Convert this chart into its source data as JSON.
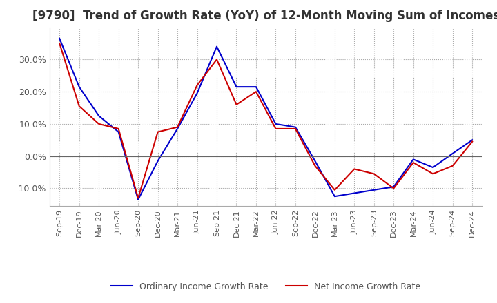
{
  "title": "[9790]  Trend of Growth Rate (YoY) of 12-Month Moving Sum of Incomes",
  "title_fontsize": 12,
  "ylim": [
    -0.155,
    0.4
  ],
  "yticks": [
    -0.1,
    0.0,
    0.1,
    0.2,
    0.3
  ],
  "background_color": "#ffffff",
  "grid_color": "#aaaaaa",
  "legend_labels": [
    "Ordinary Income Growth Rate",
    "Net Income Growth Rate"
  ],
  "line_colors": [
    "#0000cc",
    "#cc0000"
  ],
  "x_labels": [
    "Sep-19",
    "Dec-19",
    "Mar-20",
    "Jun-20",
    "Sep-20",
    "Dec-20",
    "Mar-21",
    "Jun-21",
    "Sep-21",
    "Dec-21",
    "Mar-22",
    "Jun-22",
    "Sep-22",
    "Dec-22",
    "Mar-23",
    "Jun-23",
    "Sep-23",
    "Dec-23",
    "Mar-24",
    "Jun-24",
    "Sep-24",
    "Dec-24"
  ],
  "ordinary_income": [
    0.365,
    0.215,
    0.125,
    0.075,
    -0.135,
    -0.015,
    0.085,
    0.195,
    0.34,
    0.215,
    0.215,
    0.1,
    0.09,
    -0.015,
    -0.125,
    -0.115,
    -0.105,
    -0.095,
    -0.01,
    -0.035,
    0.008,
    0.05
  ],
  "net_income": [
    0.35,
    0.155,
    0.1,
    0.085,
    -0.13,
    0.075,
    0.09,
    0.22,
    0.3,
    0.16,
    0.2,
    0.085,
    0.085,
    -0.03,
    -0.105,
    -0.04,
    -0.055,
    -0.1,
    -0.02,
    -0.055,
    -0.03,
    0.045
  ]
}
